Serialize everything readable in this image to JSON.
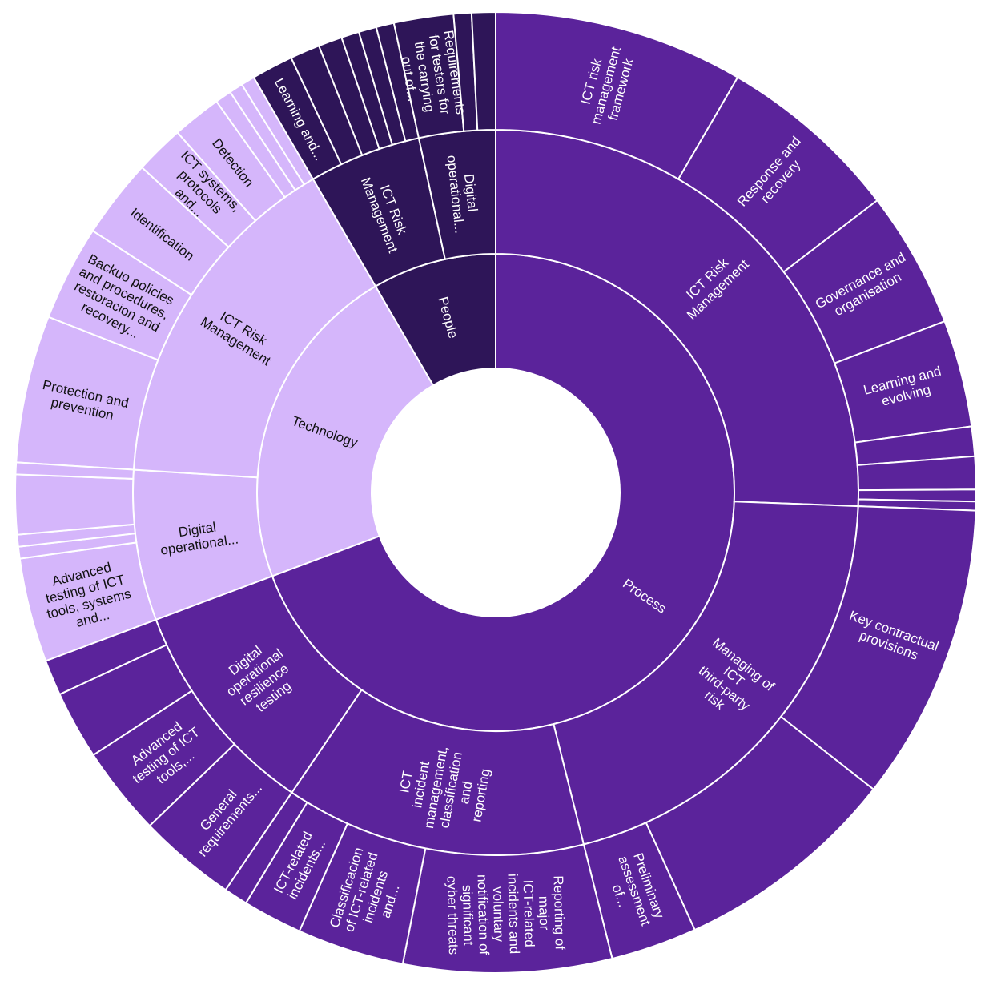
{
  "chart_data": {
    "type": "sunburst",
    "colors": {
      "process": "#5b239b",
      "technology": "#d5b6fb",
      "people": "#2e1558"
    },
    "nodes": [
      {
        "id": "process",
        "label": "Process",
        "level": 1,
        "value": 69.3,
        "color": "process"
      },
      {
        "id": "technology",
        "label": "Technology",
        "level": 1,
        "value": 22.3,
        "color": "technology"
      },
      {
        "id": "people",
        "label": "People",
        "level": 1,
        "value": 8.4,
        "color": "people"
      },
      {
        "id": "p-ict",
        "parent": "process",
        "label": "ICT Risk Management",
        "level": 2,
        "value": 25.6,
        "color": "process"
      },
      {
        "id": "p-tpr",
        "parent": "process",
        "label": "Managing of ICT third-party risk",
        "level": 2,
        "value": 20.5,
        "color": "process"
      },
      {
        "id": "p-inc",
        "parent": "process",
        "label": "ICT incident management, classification and reporting",
        "level": 2,
        "value": 13.4,
        "color": "process"
      },
      {
        "id": "p-dor",
        "parent": "process",
        "label": "Digital operational resilience testing",
        "level": 2,
        "value": 9.8,
        "color": "process"
      },
      {
        "id": "t-dor",
        "parent": "technology",
        "label": "Digital operational...",
        "level": 2,
        "value": 6.7,
        "color": "technology"
      },
      {
        "id": "t-ict",
        "parent": "technology",
        "label": "ICT Risk Management",
        "level": 2,
        "value": 15.6,
        "color": "technology"
      },
      {
        "id": "pe-ict",
        "parent": "people",
        "label": "ICT Risk Management",
        "level": 2,
        "value": 5.0,
        "color": "people"
      },
      {
        "id": "pe-dor",
        "parent": "people",
        "label": "Digital operational...",
        "level": 2,
        "value": 3.4,
        "color": "people"
      },
      {
        "parent": "p-ict",
        "label": "ICT risk management framework",
        "level": 3,
        "value": 8.4,
        "color": "process"
      },
      {
        "parent": "p-ict",
        "label": "Response and recovery",
        "level": 3,
        "value": 6.2,
        "color": "process"
      },
      {
        "parent": "p-ict",
        "label": "Governance and organisation",
        "level": 3,
        "value": 4.6,
        "color": "process"
      },
      {
        "parent": "p-ict",
        "label": "Learning and evolving",
        "level": 3,
        "value": 3.6,
        "color": "process"
      },
      {
        "parent": "p-ict",
        "label": "",
        "level": 3,
        "value": 1.0,
        "color": "process"
      },
      {
        "parent": "p-ict",
        "label": "",
        "level": 3,
        "value": 1.1,
        "color": "process"
      },
      {
        "parent": "p-ict",
        "label": "",
        "level": 3,
        "value": 0.4,
        "color": "process"
      },
      {
        "parent": "p-ict",
        "label": "",
        "level": 3,
        "value": 0.3,
        "color": "process"
      },
      {
        "parent": "p-tpr",
        "label": "Key contractual provisions",
        "level": 3,
        "value": 10.0,
        "color": "process"
      },
      {
        "parent": "p-tpr",
        "label": "",
        "level": 3,
        "value": 7.6,
        "color": "process"
      },
      {
        "parent": "p-tpr",
        "label": "Preliminary assessment of...",
        "level": 3,
        "value": 2.9,
        "color": "process"
      },
      {
        "parent": "p-inc",
        "label": "Reporting of major ICT-related incidents and voluntary notification of significant cyber threats",
        "level": 3,
        "value": 7.0,
        "color": "process"
      },
      {
        "parent": "p-inc",
        "label": "Classificacion of ICT-related incidents and...",
        "level": 3,
        "value": 3.6,
        "color": "process"
      },
      {
        "parent": "p-inc",
        "label": "ICT-related incidents...",
        "level": 3,
        "value": 2.0,
        "color": "process"
      },
      {
        "parent": "p-inc",
        "label": "",
        "level": 3,
        "value": 0.8,
        "color": "process"
      },
      {
        "parent": "p-dor",
        "label": "General requirements...",
        "level": 3,
        "value": 3.3,
        "color": "process"
      },
      {
        "parent": "p-dor",
        "label": "Advanced testing of ICT tools,...",
        "level": 3,
        "value": 3.0,
        "color": "process"
      },
      {
        "parent": "p-dor",
        "label": "",
        "level": 3,
        "value": 2.3,
        "color": "process"
      },
      {
        "parent": "p-dor",
        "label": "",
        "level": 3,
        "value": 1.2,
        "color": "process"
      },
      {
        "parent": "t-ict",
        "label": "Protection and prevention",
        "level": 3,
        "value": 5.4,
        "color": "technology"
      },
      {
        "parent": "t-ict",
        "label": "Backuo policies and procedures, restoracion and recovery...",
        "level": 3,
        "value": 3.5,
        "color": "technology"
      },
      {
        "parent": "t-ict",
        "label": "Identification",
        "level": 3,
        "value": 2.9,
        "color": "technology"
      },
      {
        "parent": "t-ict",
        "label": "ICT systems, protocols and...",
        "level": 3,
        "value": 1.8,
        "color": "technology"
      },
      {
        "parent": "t-ict",
        "label": "Detection",
        "level": 3,
        "value": 1.8,
        "color": "technology"
      },
      {
        "parent": "t-ict",
        "label": "",
        "level": 3,
        "value": 0.6,
        "color": "technology"
      },
      {
        "parent": "t-ict",
        "label": "",
        "level": 3,
        "value": 0.5,
        "color": "technology"
      },
      {
        "parent": "t-ict",
        "label": "",
        "level": 3,
        "value": 0.5,
        "color": "technology"
      },
      {
        "parent": "t-dor",
        "label": "Advanced testing of ICT tools, systems and...",
        "level": 3,
        "value": 3.5,
        "color": "technology"
      },
      {
        "parent": "t-dor",
        "label": "",
        "level": 3,
        "value": 0.4,
        "color": "technology"
      },
      {
        "parent": "t-dor",
        "label": "",
        "level": 3,
        "value": 0.4,
        "color": "technology"
      },
      {
        "parent": "t-dor",
        "label": "",
        "level": 3,
        "value": 2.0,
        "color": "technology"
      },
      {
        "parent": "t-dor",
        "label": "",
        "level": 3,
        "value": 0.4,
        "color": "technology"
      },
      {
        "parent": "pe-ict",
        "label": "Learning and...",
        "level": 3,
        "value": 1.4,
        "color": "people"
      },
      {
        "parent": "pe-ict",
        "label": "",
        "level": 3,
        "value": 1.0,
        "color": "people"
      },
      {
        "parent": "pe-ict",
        "label": "",
        "level": 3,
        "value": 0.8,
        "color": "people"
      },
      {
        "parent": "pe-ict",
        "label": "",
        "level": 3,
        "value": 0.6,
        "color": "people"
      },
      {
        "parent": "pe-ict",
        "label": "",
        "level": 3,
        "value": 0.6,
        "color": "people"
      },
      {
        "parent": "pe-ict",
        "label": "",
        "level": 3,
        "value": 0.6,
        "color": "people"
      },
      {
        "parent": "pe-dor",
        "label": "Requirements for testers for the carrying out of...",
        "level": 3,
        "value": 2.0,
        "color": "people"
      },
      {
        "parent": "pe-dor",
        "label": "",
        "level": 3,
        "value": 0.6,
        "color": "people"
      },
      {
        "parent": "pe-dor",
        "label": "",
        "level": 3,
        "value": 0.8,
        "color": "people"
      }
    ]
  }
}
